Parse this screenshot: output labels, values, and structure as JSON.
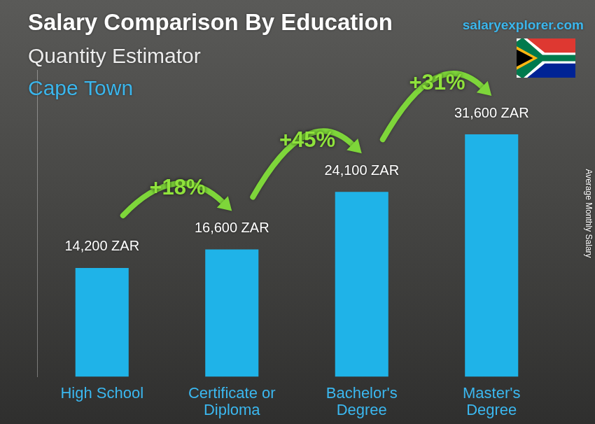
{
  "chart_data": {
    "type": "bar",
    "title": "Salary Comparison By Education",
    "subtitle": "Quantity Estimator",
    "location": "Cape Town",
    "source": "salaryexplorer.com",
    "ylabel": "Average Monthly Salary",
    "categories": [
      "High School",
      "Certificate or Diploma",
      "Bachelor's Degree",
      "Master's Degree"
    ],
    "values": [
      14200,
      16600,
      24100,
      31600
    ],
    "value_labels": [
      "14,200 ZAR",
      "16,600 ZAR",
      "24,100 ZAR",
      "31,600 ZAR"
    ],
    "annotations": [
      "+18%",
      "+45%",
      "+31%"
    ],
    "color": "#1fb3e8",
    "ylim": [
      0,
      40000
    ],
    "grid": false,
    "data_labels": true,
    "tick_labels": "x"
  }
}
